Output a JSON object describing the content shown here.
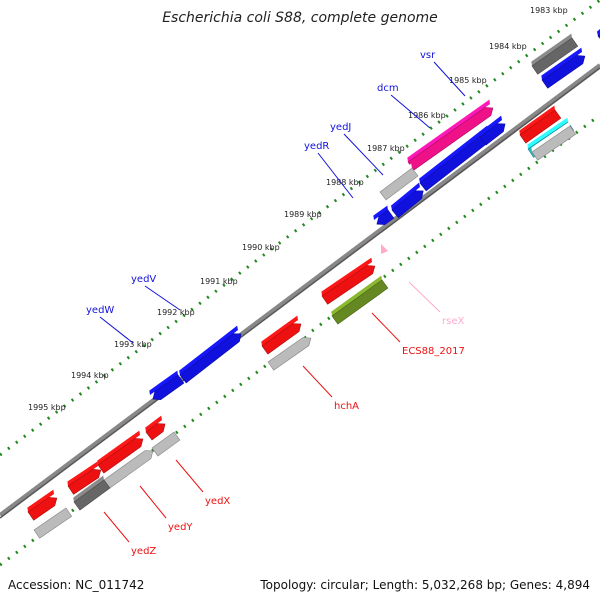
{
  "title": "Escherichia coli S88, complete genome",
  "accession": "Accession: NC_011742",
  "summary": "Topology: circular; Length: 5,032,268 bp; Genes: 4,894",
  "colors": {
    "red": "#ee1111",
    "blue": "#1111dd",
    "gray": "#bbbbbb",
    "darkgray": "#666666",
    "magenta": "#ee1188",
    "olive": "#668822",
    "cyan": "#22bbcc",
    "pink": "#ffaacc",
    "backbone": "#888888",
    "tick": "#228822"
  },
  "ticks": [
    "1983 kbp",
    "1984 kbp",
    "1985 kbp",
    "1986 kbp",
    "1987 kbp",
    "1988 kbp",
    "1989 kbp",
    "1990 kbp",
    "1991 kbp",
    "1992 kbp",
    "1993 kbp",
    "1994 kbp",
    "1995 kbp"
  ],
  "gene_labels": {
    "vsr": "vsr",
    "dcm": "dcm",
    "yedJ": "yedJ",
    "yedR": "yedR",
    "yedV": "yedV",
    "yedW": "yedW",
    "rseX": "rseX",
    "ecs": "ECS88_2017",
    "hchA": "hchA",
    "yedX": "yedX",
    "yedY": "yedY",
    "yedZ": "yedZ"
  }
}
